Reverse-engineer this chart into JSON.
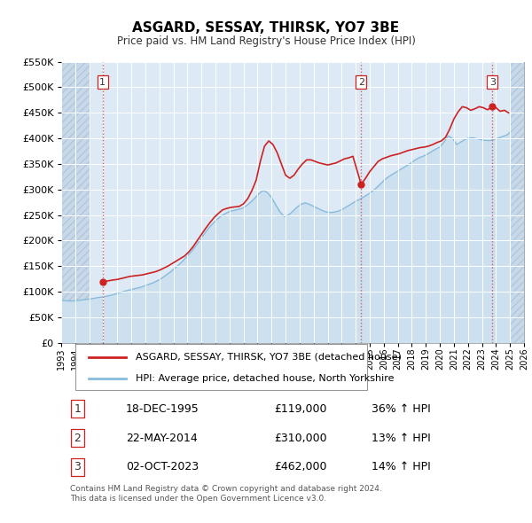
{
  "title": "ASGARD, SESSAY, THIRSK, YO7 3BE",
  "subtitle": "Price paid vs. HM Land Registry's House Price Index (HPI)",
  "legend_label_red": "ASGARD, SESSAY, THIRSK, YO7 3BE (detached house)",
  "legend_label_blue": "HPI: Average price, detached house, North Yorkshire",
  "sale_points": [
    {
      "num": 1,
      "date_str": "18-DEC-1995",
      "year": 1995.96,
      "price": 119000,
      "hpi_pct": "36% ↑ HPI"
    },
    {
      "num": 2,
      "date_str": "22-MAY-2014",
      "year": 2014.39,
      "price": 310000,
      "hpi_pct": "13% ↑ HPI"
    },
    {
      "num": 3,
      "date_str": "02-OCT-2023",
      "year": 2023.75,
      "price": 462000,
      "hpi_pct": "14% ↑ HPI"
    }
  ],
  "vline_color": "#d06060",
  "red_line_color": "#cc2222",
  "blue_line_color": "#88bbdd",
  "blue_fill_color": "#cce0f0",
  "plot_bg_color": "#ddeaf5",
  "hatch_color": "#c8d8e8",
  "grid_color": "#ffffff",
  "ylim": [
    0,
    550000
  ],
  "yticks": [
    0,
    50000,
    100000,
    150000,
    200000,
    250000,
    300000,
    350000,
    400000,
    450000,
    500000,
    550000
  ],
  "xmin": 1993,
  "xmax": 2026,
  "footer": "Contains HM Land Registry data © Crown copyright and database right 2024.\nThis data is licensed under the Open Government Licence v3.0.",
  "red_line_data": {
    "years": [
      1995.96,
      1996.1,
      1996.4,
      1996.7,
      1997.0,
      1997.3,
      1997.6,
      1997.9,
      1998.2,
      1998.5,
      1998.8,
      1999.1,
      1999.4,
      1999.7,
      2000.0,
      2000.3,
      2000.6,
      2000.9,
      2001.2,
      2001.5,
      2001.8,
      2002.1,
      2002.4,
      2002.7,
      2003.0,
      2003.3,
      2003.6,
      2003.9,
      2004.2,
      2004.5,
      2004.8,
      2005.1,
      2005.4,
      2005.7,
      2006.0,
      2006.3,
      2006.6,
      2006.9,
      2007.2,
      2007.5,
      2007.8,
      2008.1,
      2008.4,
      2008.7,
      2009.0,
      2009.3,
      2009.6,
      2009.9,
      2010.2,
      2010.5,
      2010.8,
      2011.1,
      2011.4,
      2011.7,
      2012.0,
      2012.3,
      2012.6,
      2012.9,
      2013.2,
      2013.5,
      2013.8,
      2014.39,
      2014.7,
      2015.0,
      2015.3,
      2015.6,
      2015.9,
      2016.2,
      2016.5,
      2016.8,
      2017.1,
      2017.4,
      2017.7,
      2018.0,
      2018.3,
      2018.6,
      2018.9,
      2019.2,
      2019.5,
      2019.8,
      2020.1,
      2020.4,
      2020.7,
      2021.0,
      2021.3,
      2021.6,
      2021.9,
      2022.2,
      2022.5,
      2022.8,
      2023.1,
      2023.4,
      2023.75,
      2024.0,
      2024.3,
      2024.6,
      2024.9
    ],
    "prices": [
      119000,
      120000,
      121500,
      123000,
      124000,
      126000,
      128000,
      130000,
      131000,
      132000,
      133000,
      135000,
      137000,
      139000,
      142000,
      146000,
      150000,
      155000,
      160000,
      165000,
      170000,
      178000,
      188000,
      200000,
      212000,
      224000,
      235000,
      245000,
      253000,
      260000,
      263000,
      265000,
      266000,
      267000,
      272000,
      282000,
      298000,
      318000,
      355000,
      385000,
      395000,
      388000,
      372000,
      350000,
      328000,
      322000,
      328000,
      340000,
      350000,
      358000,
      358000,
      355000,
      352000,
      350000,
      348000,
      350000,
      352000,
      356000,
      360000,
      362000,
      365000,
      310000,
      322000,
      335000,
      345000,
      355000,
      360000,
      363000,
      366000,
      368000,
      370000,
      373000,
      376000,
      378000,
      380000,
      382000,
      383000,
      385000,
      388000,
      392000,
      395000,
      402000,
      418000,
      438000,
      452000,
      462000,
      460000,
      455000,
      458000,
      462000,
      460000,
      456000,
      462000,
      460000,
      453000,
      455000,
      450000
    ]
  },
  "blue_line_data": {
    "years": [
      1993.0,
      1993.3,
      1993.6,
      1993.9,
      1994.2,
      1994.5,
      1994.8,
      1995.1,
      1995.4,
      1995.7,
      1996.0,
      1996.3,
      1996.6,
      1996.9,
      1997.2,
      1997.5,
      1997.8,
      1998.1,
      1998.4,
      1998.7,
      1999.0,
      1999.3,
      1999.6,
      1999.9,
      2000.2,
      2000.5,
      2000.8,
      2001.1,
      2001.4,
      2001.7,
      2002.0,
      2002.3,
      2002.6,
      2002.9,
      2003.2,
      2003.5,
      2003.8,
      2004.1,
      2004.4,
      2004.7,
      2005.0,
      2005.3,
      2005.6,
      2005.9,
      2006.2,
      2006.5,
      2006.8,
      2007.1,
      2007.4,
      2007.7,
      2008.0,
      2008.3,
      2008.6,
      2008.9,
      2009.2,
      2009.5,
      2009.8,
      2010.1,
      2010.4,
      2010.7,
      2011.0,
      2011.3,
      2011.6,
      2011.9,
      2012.2,
      2012.5,
      2012.8,
      2013.1,
      2013.4,
      2013.7,
      2014.0,
      2014.3,
      2014.6,
      2014.9,
      2015.2,
      2015.5,
      2015.8,
      2016.1,
      2016.4,
      2016.7,
      2017.0,
      2017.3,
      2017.6,
      2017.9,
      2018.2,
      2018.5,
      2018.8,
      2019.1,
      2019.4,
      2019.7,
      2020.0,
      2020.3,
      2020.6,
      2020.9,
      2021.2,
      2021.5,
      2021.8,
      2022.1,
      2022.4,
      2022.7,
      2023.0,
      2023.3,
      2023.6,
      2023.9,
      2024.2,
      2024.5,
      2024.8,
      2025.0
    ],
    "prices": [
      83000,
      82500,
      82000,
      82000,
      83000,
      84000,
      85000,
      86000,
      87500,
      89000,
      90000,
      91500,
      93500,
      96000,
      98500,
      101000,
      103000,
      105000,
      107000,
      109000,
      112000,
      115000,
      118000,
      122000,
      127000,
      133000,
      139000,
      146000,
      153000,
      161000,
      170000,
      179000,
      190000,
      201000,
      213000,
      224000,
      233000,
      241000,
      248000,
      253000,
      257000,
      259000,
      261000,
      263000,
      268000,
      275000,
      283000,
      292000,
      298000,
      294000,
      284000,
      270000,
      256000,
      247000,
      250000,
      257000,
      265000,
      271000,
      274000,
      271000,
      267000,
      263000,
      259000,
      256000,
      255000,
      256000,
      258000,
      262000,
      267000,
      272000,
      277000,
      281000,
      286000,
      291000,
      297000,
      304000,
      312000,
      320000,
      326000,
      331000,
      336000,
      341000,
      346000,
      351000,
      357000,
      362000,
      365000,
      369000,
      374000,
      379000,
      383000,
      393000,
      405000,
      400000,
      388000,
      393000,
      398000,
      401000,
      401000,
      399000,
      397000,
      396000,
      396000,
      398000,
      401000,
      404000,
      407000,
      412000
    ]
  }
}
